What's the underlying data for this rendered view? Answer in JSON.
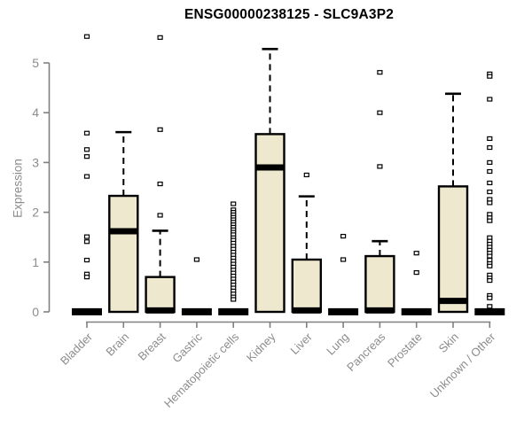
{
  "chart_data": {
    "type": "boxplot",
    "title": "ENSG00000238125 - SLC9A3P2",
    "ylabel": "Expression",
    "xlabel": "",
    "ylim": [
      0,
      5.6
    ],
    "yticks": [
      0,
      1,
      2,
      3,
      4,
      5
    ],
    "grid": false,
    "legend": "none",
    "categories": [
      "Bladder",
      "Brain",
      "Breast",
      "Gastric",
      "Hematopoietic cells",
      "Kidney",
      "Liver",
      "Lung",
      "Pancreas",
      "Prostate",
      "Skin",
      "Unknown / Other"
    ],
    "boxes": [
      {
        "category": "Bladder",
        "whisker_low": 0,
        "q1": 0,
        "median": 0.02,
        "q3": 0.02,
        "whisker_high": 0.02,
        "outliers": [
          5.53,
          3.59,
          3.26,
          3.12,
          2.72,
          1.51,
          1.41,
          1.04,
          0.76,
          0.7
        ]
      },
      {
        "category": "Brain",
        "whisker_low": 0,
        "q1": 0,
        "median": 1.62,
        "q3": 2.33,
        "whisker_high": 3.61,
        "outliers": []
      },
      {
        "category": "Breast",
        "whisker_low": 0,
        "q1": 0,
        "median": 0.03,
        "q3": 0.7,
        "whisker_high": 1.63,
        "outliers": [
          5.51,
          3.66,
          2.57,
          1.94
        ]
      },
      {
        "category": "Gastric",
        "whisker_low": 0,
        "q1": 0,
        "median": 0.02,
        "q3": 0.02,
        "whisker_high": 0.02,
        "outliers": [
          1.05
        ]
      },
      {
        "category": "Hematopoietic cells",
        "whisker_low": 0,
        "q1": 0,
        "median": 0.02,
        "q3": 0.02,
        "whisker_high": 0.02,
        "outliers": [
          2.17,
          2.05,
          2.0,
          1.95,
          1.9,
          1.85,
          1.8,
          1.75,
          1.7,
          1.65,
          1.6,
          1.55,
          1.49,
          1.44,
          1.38,
          1.32,
          1.26,
          1.2,
          1.14,
          1.08,
          1.02,
          0.96,
          0.9,
          0.84,
          0.78,
          0.72,
          0.66,
          0.6,
          0.54,
          0.48,
          0.42,
          0.36,
          0.3,
          0.25
        ]
      },
      {
        "category": "Kidney",
        "whisker_low": 0,
        "q1": 0,
        "median": 2.9,
        "q3": 3.57,
        "whisker_high": 5.28,
        "outliers": []
      },
      {
        "category": "Liver",
        "whisker_low": 0,
        "q1": 0,
        "median": 0.03,
        "q3": 1.05,
        "whisker_high": 2.32,
        "outliers": [
          2.75
        ]
      },
      {
        "category": "Lung",
        "whisker_low": 0,
        "q1": 0,
        "median": 0.02,
        "q3": 0.02,
        "whisker_high": 0.02,
        "outliers": [
          1.52,
          1.05
        ]
      },
      {
        "category": "Pancreas",
        "whisker_low": 0,
        "q1": 0,
        "median": 0.03,
        "q3": 1.12,
        "whisker_high": 1.42,
        "outliers": [
          4.81,
          4.0,
          2.92
        ]
      },
      {
        "category": "Prostate",
        "whisker_low": 0,
        "q1": 0,
        "median": 0.02,
        "q3": 0.02,
        "whisker_high": 0.02,
        "outliers": [
          1.18,
          0.79
        ]
      },
      {
        "category": "Skin",
        "whisker_low": 0,
        "q1": 0,
        "median": 0.22,
        "q3": 2.52,
        "whisker_high": 4.38,
        "outliers": []
      },
      {
        "category": "Unknown / Other",
        "whisker_low": 0,
        "q1": 0,
        "median": 0.02,
        "q3": 0.02,
        "whisker_high": 0.02,
        "outliers": [
          4.78,
          4.73,
          4.27,
          3.48,
          3.3,
          3.0,
          2.82,
          2.59,
          2.41,
          2.26,
          2.19,
          1.96,
          1.89,
          1.83,
          1.49,
          1.42,
          1.36,
          1.3,
          1.24,
          1.18,
          1.12,
          1.04,
          0.97,
          0.92,
          0.74,
          0.68,
          0.63,
          0.33,
          0.28,
          0.11
        ]
      }
    ],
    "colors": {
      "box_fill": "#EDE8CE",
      "box_stroke": "#000000",
      "median": "#000000",
      "whisker": "#000000",
      "outlier_stroke": "#000000",
      "outlier_fill": "#ffffff",
      "axis": "#808080",
      "tick_text": "#8c8c8c",
      "title_text": "#000000",
      "background": "#ffffff"
    }
  }
}
